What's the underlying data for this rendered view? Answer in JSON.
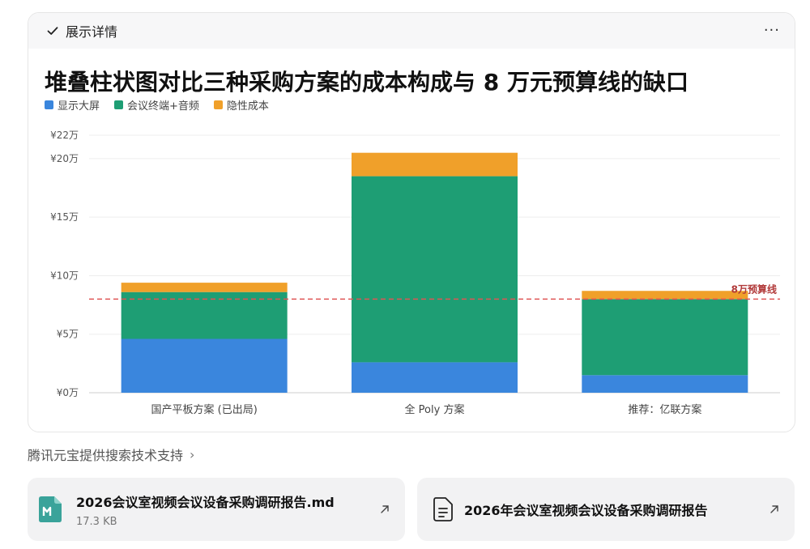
{
  "header": {
    "label": "展示详情",
    "more": "···"
  },
  "chart_data": {
    "type": "bar",
    "stacked": true,
    "title": "堆叠柱状图对比三种采购方案的成本构成与 8 万元预算线的缺口",
    "categories": [
      "国产平板方案 (已出局)",
      "全 Poly 方案",
      "推荐：亿联方案"
    ],
    "series": [
      {
        "name": "显示大屏",
        "color": "#3a86dd",
        "values": [
          4.6,
          2.6,
          1.5
        ]
      },
      {
        "name": "会议终端+音频",
        "color": "#1e9e74",
        "values": [
          4.0,
          15.9,
          6.5
        ]
      },
      {
        "name": "隐性成本",
        "color": "#f0a02a",
        "values": [
          0.8,
          2.0,
          0.7
        ]
      }
    ],
    "ylim": [
      0,
      22
    ],
    "yticks": [
      {
        "value": 0,
        "label": "¥0万"
      },
      {
        "value": 5,
        "label": "¥5万"
      },
      {
        "value": 10,
        "label": "¥10万"
      },
      {
        "value": 15,
        "label": "¥15万"
      },
      {
        "value": 20,
        "label": "¥20万"
      },
      {
        "value": 22,
        "label": "¥22万"
      }
    ],
    "reference_line": {
      "value": 8,
      "label": "8万预算线",
      "color": "#e05555"
    },
    "grid": true,
    "legend_position": "top-left"
  },
  "footer": {
    "source_text": "腾讯元宝提供搜索技术支持",
    "chevron": "›"
  },
  "files": [
    {
      "name": "2026会议室视频会议设备采购调研报告.md",
      "size": "17.3 KB",
      "icon": "markdown-file-icon"
    },
    {
      "name": "2026年会议室视频会议设备采购调研报告",
      "size": "",
      "icon": "document-icon"
    }
  ]
}
